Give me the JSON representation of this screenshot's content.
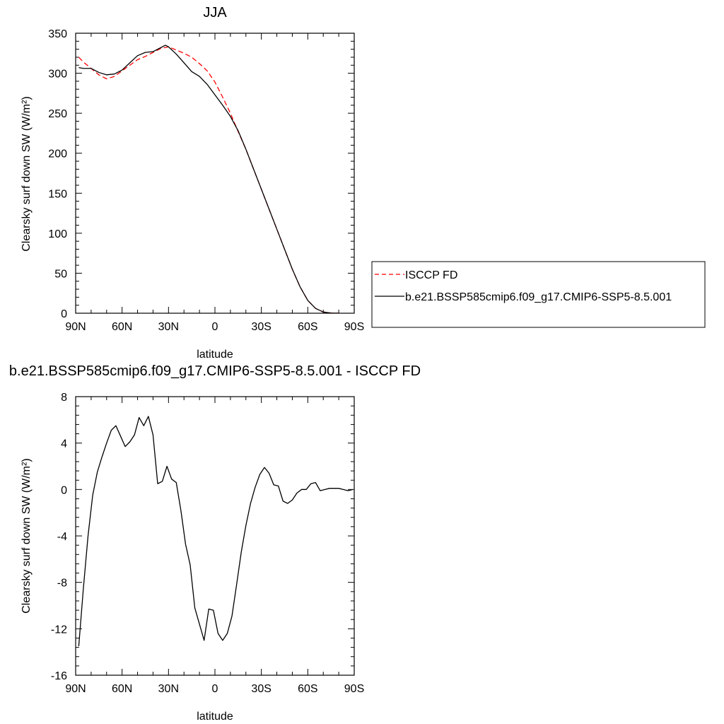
{
  "colors": {
    "isccp": "#ff0000",
    "model": "#000000",
    "frame": "#000000"
  },
  "legend": {
    "entries": [
      {
        "label": "ISCCP FD",
        "color": "#ff0000",
        "dash": true
      },
      {
        "label": "b.e21.BSSP585cmip6.f09_g17.CMIP6-SSP5-8.5.001",
        "color": "#000000",
        "dash": false
      }
    ]
  },
  "chart_data": [
    {
      "type": "line",
      "title": "JJA",
      "xlabel": "latitude",
      "ylabel": "Clearsky surf down SW (W/m²)",
      "xticks": [
        "90N",
        "60N",
        "30N",
        "0",
        "30S",
        "60S",
        "90S"
      ],
      "xtick_values": [
        90,
        60,
        30,
        0,
        -30,
        -60,
        -90
      ],
      "yticks": [
        "0",
        "50",
        "100",
        "150",
        "200",
        "250",
        "300",
        "350"
      ],
      "ytick_values": [
        0,
        50,
        100,
        150,
        200,
        250,
        300,
        350
      ],
      "xlim": [
        90,
        -90
      ],
      "ylim": [
        0,
        350
      ],
      "series": [
        {
          "name": "ISCCP FD",
          "style": "dashed",
          "color": "#ff0000",
          "x": [
            88,
            85,
            80,
            75,
            70,
            65,
            60,
            55,
            50,
            45,
            40,
            35,
            30,
            25,
            20,
            15,
            10,
            5,
            0,
            -5,
            -10,
            -15,
            -20,
            -25,
            -30,
            -35,
            -40,
            -45,
            -50,
            -55,
            -60,
            -65,
            -70,
            -75,
            -80
          ],
          "y": [
            320,
            314,
            306,
            298,
            293,
            296,
            303,
            310,
            317,
            321,
            326,
            331,
            333,
            329,
            325,
            320,
            312,
            303,
            289,
            270,
            250,
            227,
            205,
            180,
            155,
            130,
            105,
            80,
            55,
            33,
            16,
            6,
            1.5,
            0.2,
            0
          ]
        },
        {
          "name": "b.e21.BSSP585cmip6.f09_g17.CMIP6-SSP5-8.5.001",
          "style": "solid",
          "color": "#000000",
          "x": [
            88,
            85,
            80,
            75,
            70,
            65,
            60,
            55,
            50,
            45,
            40,
            35,
            32,
            30,
            25,
            20,
            15,
            10,
            5,
            0,
            -5,
            -10,
            -15,
            -20,
            -25,
            -30,
            -35,
            -40,
            -45,
            -50,
            -55,
            -60,
            -65,
            -70,
            -75,
            -80
          ],
          "y": [
            307,
            306,
            306,
            301,
            298,
            299,
            304,
            313,
            322,
            326,
            327,
            332,
            335,
            333,
            324,
            313,
            302,
            296,
            286,
            273,
            260,
            246,
            228,
            205,
            180,
            155,
            130,
            105,
            80,
            55,
            33,
            16,
            6,
            1.5,
            0.2,
            0
          ]
        }
      ]
    },
    {
      "type": "line",
      "title": "b.e21.BSSP585cmip6.f09_g17.CMIP6-SSP5-8.5.001 - ISCCP FD",
      "xlabel": "latitude",
      "ylabel": "Clearsky surf down SW (W/m²)",
      "xticks": [
        "90N",
        "60N",
        "30N",
        "0",
        "30S",
        "60S",
        "90S"
      ],
      "xtick_values": [
        90,
        60,
        30,
        0,
        -30,
        -60,
        -90
      ],
      "yticks": [
        "-16",
        "-12",
        "-8",
        "-4",
        "0",
        "4",
        "8"
      ],
      "ytick_values": [
        -16,
        -12,
        -8,
        -4,
        0,
        4,
        8
      ],
      "xlim": [
        90,
        -90
      ],
      "ylim": [
        -16,
        8
      ],
      "series": [
        {
          "name": "",
          "style": "solid",
          "color": "#000000",
          "x": [
            88,
            85,
            82,
            79,
            76,
            73,
            70,
            67,
            64,
            61,
            58,
            55,
            52,
            49,
            46,
            43,
            40,
            37,
            34,
            31,
            28,
            25,
            22,
            19,
            16,
            13,
            10,
            7,
            4,
            1,
            -2,
            -5,
            -8,
            -11,
            -14,
            -17,
            -20,
            -23,
            -26,
            -29,
            -32,
            -35,
            -38,
            -41,
            -44,
            -47,
            -50,
            -53,
            -56,
            -59,
            -62,
            -65,
            -68,
            -71,
            -74,
            -77,
            -80,
            -83,
            -86,
            -89
          ],
          "y": [
            -13.5,
            -8.5,
            -4.0,
            -0.5,
            1.5,
            2.8,
            4.0,
            5.1,
            5.5,
            4.6,
            3.7,
            4.1,
            4.7,
            6.2,
            5.5,
            6.3,
            4.7,
            0.5,
            0.7,
            2.0,
            0.9,
            0.6,
            -1.8,
            -4.7,
            -6.5,
            -10.2,
            -11.6,
            -13.0,
            -10.3,
            -10.4,
            -12.4,
            -13.0,
            -12.4,
            -10.9,
            -8.2,
            -5.4,
            -3.1,
            -1.2,
            0.2,
            1.3,
            1.9,
            1.4,
            0.4,
            0.3,
            -1.0,
            -1.2,
            -0.9,
            -0.3,
            0.0,
            0.0,
            0.5,
            0.6,
            -0.1,
            0.0,
            0.1,
            0.1,
            0.1,
            0.0,
            -0.1,
            0.0
          ]
        }
      ]
    }
  ]
}
